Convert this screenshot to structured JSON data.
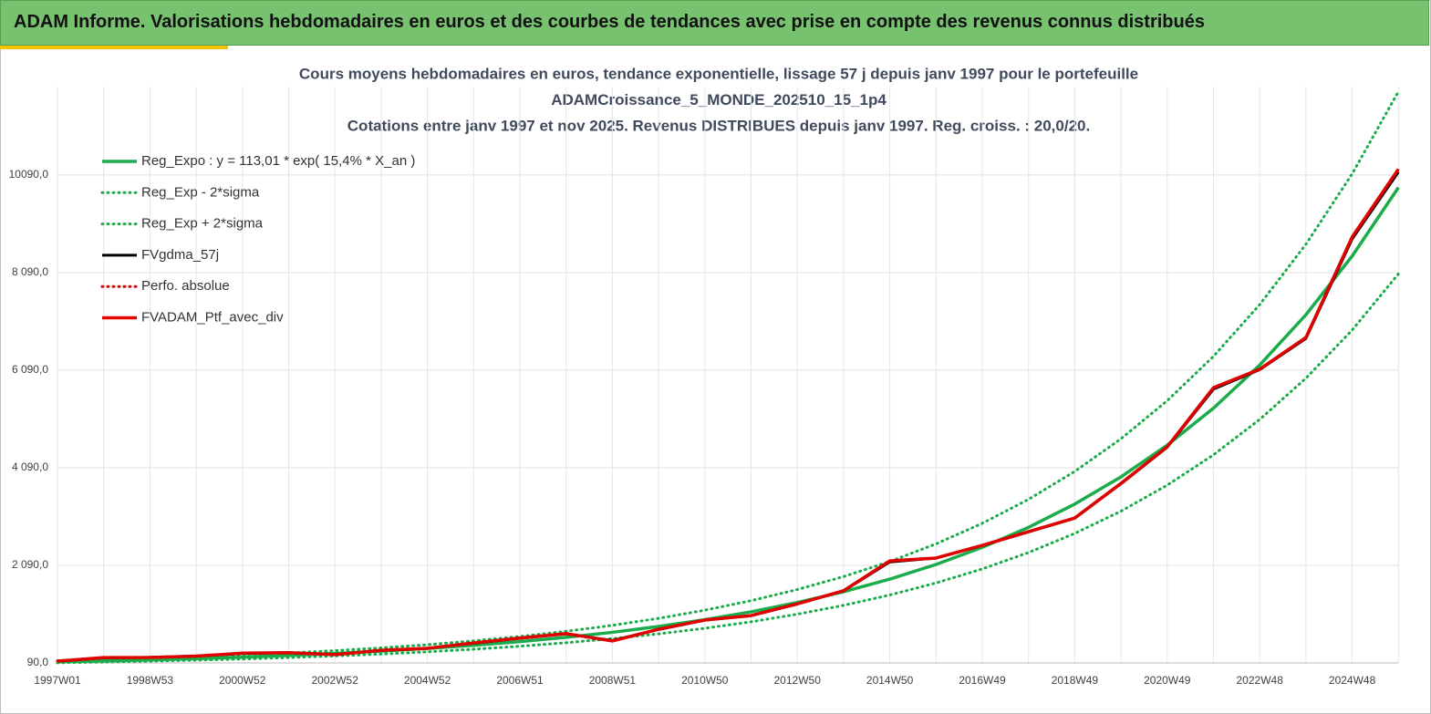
{
  "header": {
    "title": "ADAM Informe. Valorisations hebdomadaires en euros et des courbes de tendances avec prise en compte des revenus connus distribués"
  },
  "chart_data": {
    "type": "line",
    "title": [
      "Cours moyens hebdomadaires  en euros, tendance exponentielle, lissage 57 j depuis janv 1997 pour le portefeuille",
      "ADAMCroissance_5_MONDE_202510_15_1p4",
      "Cotations  entre janv 1997 et nov 2025. Revenus DISTRIBUES depuis janv 1997. Reg. croiss. : 20,0/20."
    ],
    "categories": [
      "1997W01",
      null,
      "1998W53",
      null,
      "2000W52",
      null,
      "2002W52",
      null,
      "2004W52",
      null,
      "2006W51",
      null,
      "2008W51",
      null,
      "2010W50",
      null,
      "2012W50",
      null,
      "2014W50",
      null,
      "2016W49",
      null,
      "2018W49",
      null,
      "2020W49",
      null,
      "2022W48",
      null,
      "2024W48",
      null
    ],
    "ylim": [
      90,
      11900
    ],
    "yticks": [
      {
        "value": 90,
        "label": "90,0"
      },
      {
        "value": 2090,
        "label": "2 090,0"
      },
      {
        "value": 4090,
        "label": "4 090,0"
      },
      {
        "value": 6090,
        "label": "6 090,0"
      },
      {
        "value": 8090,
        "label": "8 090,0"
      },
      {
        "value": 10090,
        "label": "10090,0"
      }
    ],
    "grid": true,
    "series": [
      {
        "name": "Reg_Expo : y = 113,01 * exp( 15,4% *  X_an )",
        "color": "#1aac4a",
        "style": "solid",
        "width": 3.5,
        "values": [
          113,
          132,
          154,
          179,
          209,
          244,
          285,
          332,
          387,
          452,
          527,
          615,
          717,
          837,
          976,
          1138,
          1328,
          1549,
          1807,
          2108,
          2459,
          2868,
          3346,
          3903,
          4553,
          5311,
          6195,
          7226,
          8429,
          9833
        ]
      },
      {
        "name": "Reg_Exp - 2*sigma",
        "color": "#1aac4a",
        "style": "dotted",
        "width": 3,
        "values": [
          93,
          108,
          126,
          147,
          171,
          200,
          234,
          272,
          317,
          371,
          432,
          504,
          588,
          686,
          800,
          933,
          1089,
          1270,
          1482,
          1729,
          2016,
          2352,
          2744,
          3200,
          3733,
          4355,
          5080,
          5925,
          6912,
          8063
        ]
      },
      {
        "name": "Reg_Exp + 2*sigma",
        "color": "#1aac4a",
        "style": "dotted",
        "width": 3,
        "values": [
          136,
          158,
          185,
          215,
          251,
          293,
          342,
          398,
          464,
          542,
          632,
          738,
          860,
          1004,
          1171,
          1366,
          1594,
          1859,
          2168,
          2530,
          2951,
          3442,
          4015,
          4684,
          5464,
          6373,
          7434,
          8671,
          10115,
          11800
        ]
      },
      {
        "name": "FVgdma_57j",
        "color": "#000000",
        "style": "solid",
        "width": 3,
        "values": [
          127,
          195,
          205,
          230,
          285,
          300,
          265,
          345,
          390,
          495,
          595,
          685,
          550,
          775,
          965,
          1060,
          1300,
          1565,
          2160,
          2240,
          2495,
          2775,
          3055,
          3760,
          4510,
          5700,
          6100,
          6740,
          8780,
          10150
        ]
      },
      {
        "name": "Perfo. absolue",
        "color": "#e00000",
        "style": "dotted",
        "width": 3,
        "values": [
          127,
          200,
          202,
          230,
          290,
          300,
          260,
          350,
          390,
          500,
          600,
          690,
          540,
          780,
          970,
          1060,
          1300,
          1570,
          2180,
          2240,
          2500,
          2780,
          3060,
          3770,
          4520,
          5730,
          6110,
          6760,
          8820,
          10210
        ]
      },
      {
        "name": "FVADAM_Ptf_avec_div",
        "color": "#e00000",
        "style": "solid",
        "width": 3.5,
        "values": [
          127,
          200,
          202,
          230,
          290,
          300,
          260,
          350,
          390,
          500,
          600,
          690,
          540,
          780,
          970,
          1060,
          1300,
          1570,
          2180,
          2240,
          2500,
          2780,
          3060,
          3770,
          4520,
          5730,
          6110,
          6760,
          8820,
          10210
        ]
      }
    ]
  }
}
